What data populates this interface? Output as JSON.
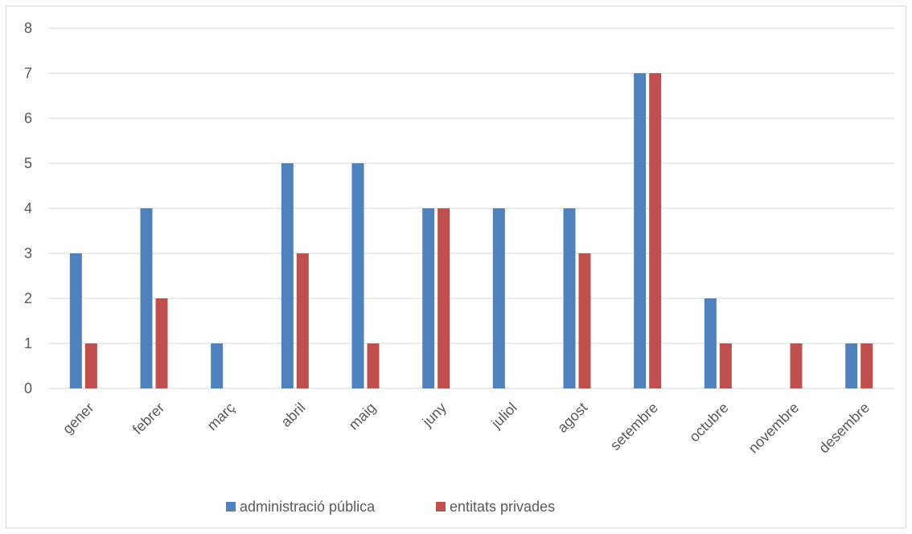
{
  "chart_data": {
    "type": "bar",
    "title": "",
    "xlabel": "",
    "ylabel": "",
    "categories": [
      "gener",
      "febrer",
      "març",
      "abril",
      "maig",
      "juny",
      "juliol",
      "agost",
      "setembre",
      "octubre",
      "novembre",
      "desembre"
    ],
    "series": [
      {
        "name": "administració pública",
        "color": "#4f81bd",
        "values": [
          3,
          4,
          1,
          5,
          5,
          4,
          4,
          4,
          7,
          2,
          0,
          1
        ]
      },
      {
        "name": "entitats privades",
        "color": "#c0504d",
        "values": [
          1,
          2,
          0,
          3,
          1,
          4,
          0,
          3,
          7,
          1,
          1,
          1
        ]
      }
    ],
    "ylim": [
      0,
      8
    ],
    "yticks": [
      0,
      1,
      2,
      3,
      4,
      5,
      6,
      7,
      8
    ],
    "grid": true,
    "legend_position": "bottom"
  }
}
